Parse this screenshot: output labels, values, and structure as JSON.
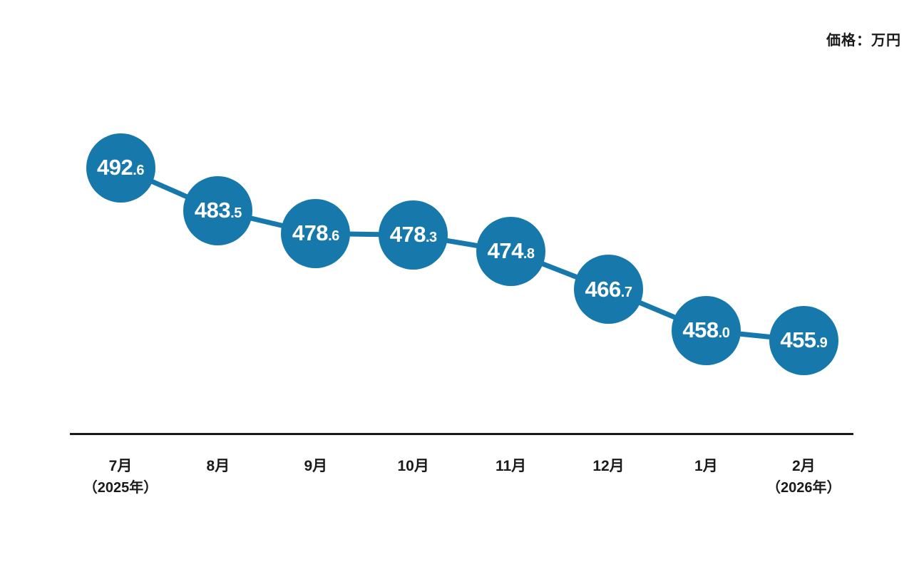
{
  "unit_label": "価格：万円",
  "colors": {
    "series": "#1779ab",
    "value_text": "#ffffff",
    "axis": "#1a1a1a",
    "category_text": "#1a1a1a",
    "background": "#ffffff"
  },
  "chart_data": {
    "type": "line",
    "title": "",
    "unit_note": "価格：万円",
    "categories": [
      "7月",
      "8月",
      "9月",
      "10月",
      "11月",
      "12月",
      "1月",
      "2月"
    ],
    "category_sublabels": [
      "（2025年）",
      "",
      "",
      "",
      "",
      "",
      "",
      "（2026年）"
    ],
    "values": [
      492.6,
      483.5,
      478.6,
      478.3,
      474.8,
      466.7,
      458.0,
      455.9
    ],
    "value_labels": [
      "492.6",
      "483.5",
      "478.6",
      "478.3",
      "474.8",
      "466.7",
      "458.0",
      "455.9"
    ],
    "marker": "filled-circle-with-value-label",
    "grid": false,
    "legend_position": "none",
    "ylim": [
      450,
      500
    ]
  }
}
